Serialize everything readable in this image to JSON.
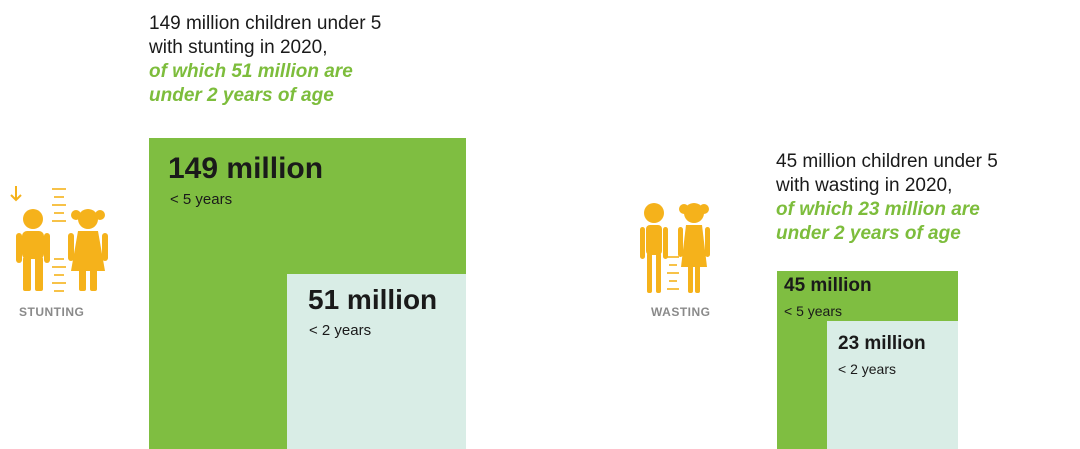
{
  "colors": {
    "outer_square": "#7fbe41",
    "inner_square": "#d9ede6",
    "highlight_text": "#7dbd3c",
    "icon_fill": "#f5b21b",
    "label_gray": "#8a8a8a"
  },
  "stunting": {
    "icon_label": "STUNTING",
    "caption_line1": "149 million children under 5",
    "caption_line2": "with stunting in 2020,",
    "caption_sub1": "of which 51 million are",
    "caption_sub2": "under 2 years of age",
    "outer_value": "149 million",
    "outer_age": "< 5 years",
    "inner_value": "51 million",
    "inner_age": "< 2 years"
  },
  "wasting": {
    "icon_label": "WASTING",
    "caption_line1": "45 million children under 5",
    "caption_line2": "with wasting in 2020,",
    "caption_sub1": "of which 23 million are",
    "caption_sub2": "under 2 years of age",
    "outer_value": "45 million",
    "outer_age": "< 5 years",
    "inner_value": "23 million",
    "inner_age": "< 2 years"
  }
}
